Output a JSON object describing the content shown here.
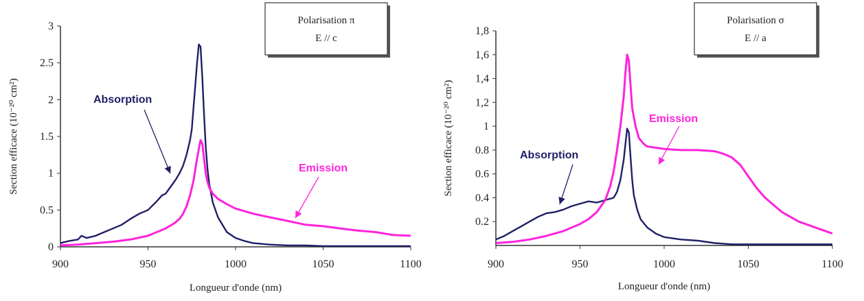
{
  "charts": [
    {
      "chart_data": {
        "type": "line",
        "legend_box": [
          "Polarisation π",
          "E // c"
        ],
        "xlabel": "Longueur d'onde (nm)",
        "ylabel": "Section efficace (10⁻²⁰ cm²)",
        "xlim": [
          900,
          1100
        ],
        "ylim": [
          0,
          3
        ],
        "xticks": [
          "900",
          "950",
          "1000",
          "1050",
          "1100"
        ],
        "yticks": [
          "0",
          "0.5",
          "1",
          "1.5",
          "2",
          "2.5",
          "3"
        ],
        "grid": false,
        "legend_position": "top-right",
        "series": [
          {
            "name": "Absorption",
            "color": "#1f1f66",
            "x": [
              900,
              905,
              910,
              912,
              915,
              920,
              925,
              930,
              935,
              940,
              945,
              950,
              955,
              958,
              960,
              963,
              966,
              968,
              970,
              972,
              974,
              975,
              976,
              977,
              978,
              979,
              980,
              981,
              982,
              983,
              984,
              985,
              987,
              990,
              993,
              995,
              1000,
              1005,
              1010,
              1020,
              1030,
              1040,
              1050,
              1060,
              1070,
              1080,
              1090,
              1100
            ],
            "y": [
              0.05,
              0.08,
              0.1,
              0.15,
              0.12,
              0.15,
              0.2,
              0.25,
              0.3,
              0.38,
              0.45,
              0.5,
              0.62,
              0.7,
              0.72,
              0.82,
              0.92,
              1.0,
              1.1,
              1.25,
              1.45,
              1.6,
              1.9,
              2.2,
              2.5,
              2.75,
              2.72,
              2.3,
              1.8,
              1.35,
              1.05,
              0.85,
              0.6,
              0.4,
              0.28,
              0.2,
              0.12,
              0.08,
              0.05,
              0.03,
              0.02,
              0.02,
              0.01,
              0.01,
              0.01,
              0.01,
              0.01,
              0.01
            ]
          },
          {
            "name": "Emission",
            "color": "#ff22dd",
            "x": [
              900,
              910,
              920,
              930,
              940,
              950,
              955,
              960,
              965,
              968,
              970,
              972,
              974,
              976,
              978,
              980,
              981,
              982,
              983,
              984,
              985,
              987,
              990,
              995,
              1000,
              1010,
              1020,
              1030,
              1040,
              1050,
              1060,
              1070,
              1080,
              1090,
              1100
            ],
            "y": [
              0.02,
              0.03,
              0.05,
              0.07,
              0.1,
              0.15,
              0.2,
              0.25,
              0.32,
              0.38,
              0.45,
              0.55,
              0.7,
              0.9,
              1.2,
              1.45,
              1.4,
              1.2,
              1.0,
              0.88,
              0.8,
              0.72,
              0.65,
              0.58,
              0.52,
              0.45,
              0.4,
              0.35,
              0.3,
              0.28,
              0.25,
              0.22,
              0.2,
              0.16,
              0.15
            ]
          }
        ]
      }
    },
    {
      "chart_data": {
        "type": "line",
        "legend_box": [
          "Polarisation σ",
          "E // a"
        ],
        "xlabel": "Longueur d'onde (nm)",
        "ylabel": "Section efficace (10⁻²⁰ cm²)",
        "xlim": [
          900,
          1100
        ],
        "ylim": [
          0,
          1.8
        ],
        "xticks": [
          "900",
          "950",
          "1000",
          "1050",
          "1100"
        ],
        "yticks": [
          "0.2",
          "0.4",
          "0.6",
          "0.8",
          "1",
          "1,2",
          "1,4",
          "1,6",
          "1,8"
        ],
        "grid": false,
        "legend_position": "top-right",
        "series": [
          {
            "name": "Absorption",
            "color": "#1f1f66",
            "x": [
              900,
              905,
              910,
              915,
              920,
              925,
              930,
              935,
              940,
              945,
              950,
              955,
              960,
              965,
              970,
              972,
              974,
              976,
              977,
              978,
              979,
              980,
              981,
              982,
              984,
              986,
              990,
              995,
              1000,
              1010,
              1020,
              1030,
              1040,
              1050,
              1060,
              1070,
              1080,
              1090,
              1100
            ],
            "y": [
              0.05,
              0.08,
              0.12,
              0.16,
              0.2,
              0.24,
              0.27,
              0.28,
              0.3,
              0.33,
              0.35,
              0.37,
              0.36,
              0.38,
              0.4,
              0.45,
              0.55,
              0.72,
              0.85,
              0.98,
              0.95,
              0.75,
              0.55,
              0.42,
              0.3,
              0.22,
              0.15,
              0.1,
              0.07,
              0.05,
              0.04,
              0.02,
              0.01,
              0.01,
              0.01,
              0.01,
              0.01,
              0.01,
              0.01
            ]
          },
          {
            "name": "Emission",
            "color": "#ff22dd",
            "x": [
              900,
              910,
              920,
              930,
              940,
              950,
              955,
              960,
              965,
              968,
              970,
              972,
              974,
              976,
              977,
              978,
              979,
              980,
              981,
              983,
              985,
              988,
              990,
              995,
              1000,
              1010,
              1020,
              1030,
              1035,
              1040,
              1045,
              1050,
              1055,
              1060,
              1070,
              1080,
              1090,
              1100
            ],
            "y": [
              0.02,
              0.03,
              0.05,
              0.08,
              0.12,
              0.18,
              0.22,
              0.28,
              0.38,
              0.5,
              0.62,
              0.8,
              1.0,
              1.25,
              1.45,
              1.6,
              1.55,
              1.35,
              1.15,
              1.0,
              0.9,
              0.85,
              0.83,
              0.82,
              0.81,
              0.8,
              0.8,
              0.79,
              0.77,
              0.74,
              0.68,
              0.58,
              0.48,
              0.4,
              0.28,
              0.2,
              0.15,
              0.1
            ]
          }
        ]
      }
    }
  ]
}
